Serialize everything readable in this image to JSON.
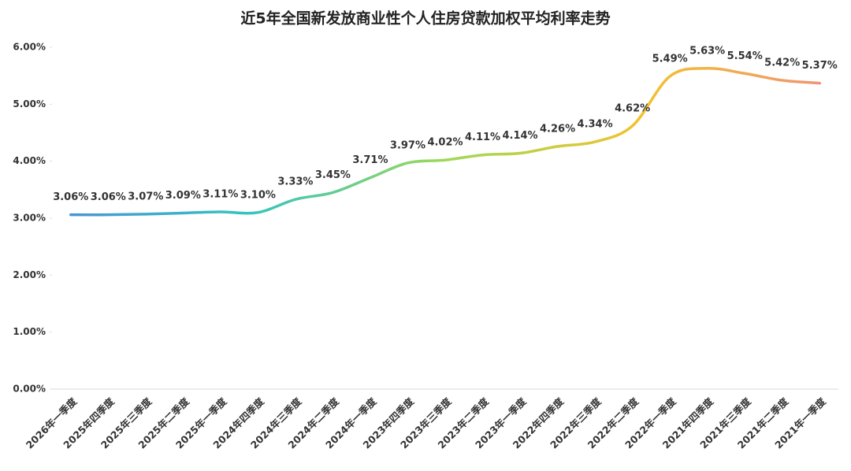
{
  "chart_data": {
    "type": "line",
    "title": "近5年全国新发放商业性个人住房贷款加权平均利率走势",
    "categories": [
      "2026年一季度",
      "2025年四季度",
      "2025年三季度",
      "2025年二季度",
      "2025年一季度",
      "2024年四季度",
      "2024年三季度",
      "2024年二季度",
      "2024年一季度",
      "2023年四季度",
      "2023年三季度",
      "2023年二季度",
      "2023年一季度",
      "2022年四季度",
      "2022年三季度",
      "2022年二季度",
      "2022年一季度",
      "2021年四季度",
      "2021年三季度",
      "2021年二季度",
      "2021年一季度"
    ],
    "values": [
      3.06,
      3.06,
      3.07,
      3.09,
      3.11,
      3.1,
      3.33,
      3.45,
      3.71,
      3.97,
      4.02,
      4.11,
      4.14,
      4.26,
      4.34,
      4.62,
      5.49,
      5.63,
      5.54,
      5.42,
      5.37
    ],
    "value_labels": [
      "3.06%",
      "3.06%",
      "3.07%",
      "3.09%",
      "3.11%",
      "3.10%",
      "3.33%",
      "3.45%",
      "3.71%",
      "3.97%",
      "4.02%",
      "4.11%",
      "4.14%",
      "4.26%",
      "4.34%",
      "4.62%",
      "5.49%",
      "5.63%",
      "5.54%",
      "5.42%",
      "5.37%"
    ],
    "gradient": [
      "#4a8fd8",
      "#35c4c0",
      "#9fd85a",
      "#f2c22e",
      "#f0907a"
    ],
    "smooth": true,
    "ylim": [
      0,
      6
    ],
    "yticks": [
      {
        "value": 0,
        "label": "0.00%"
      },
      {
        "value": 1,
        "label": "1.00%"
      },
      {
        "value": 2,
        "label": "2.00%"
      },
      {
        "value": 3,
        "label": "3.00%"
      },
      {
        "value": 4,
        "label": "4.00%"
      },
      {
        "value": 5,
        "label": "5.00%"
      },
      {
        "value": 6,
        "label": "6.00%"
      }
    ],
    "grid": false
  }
}
